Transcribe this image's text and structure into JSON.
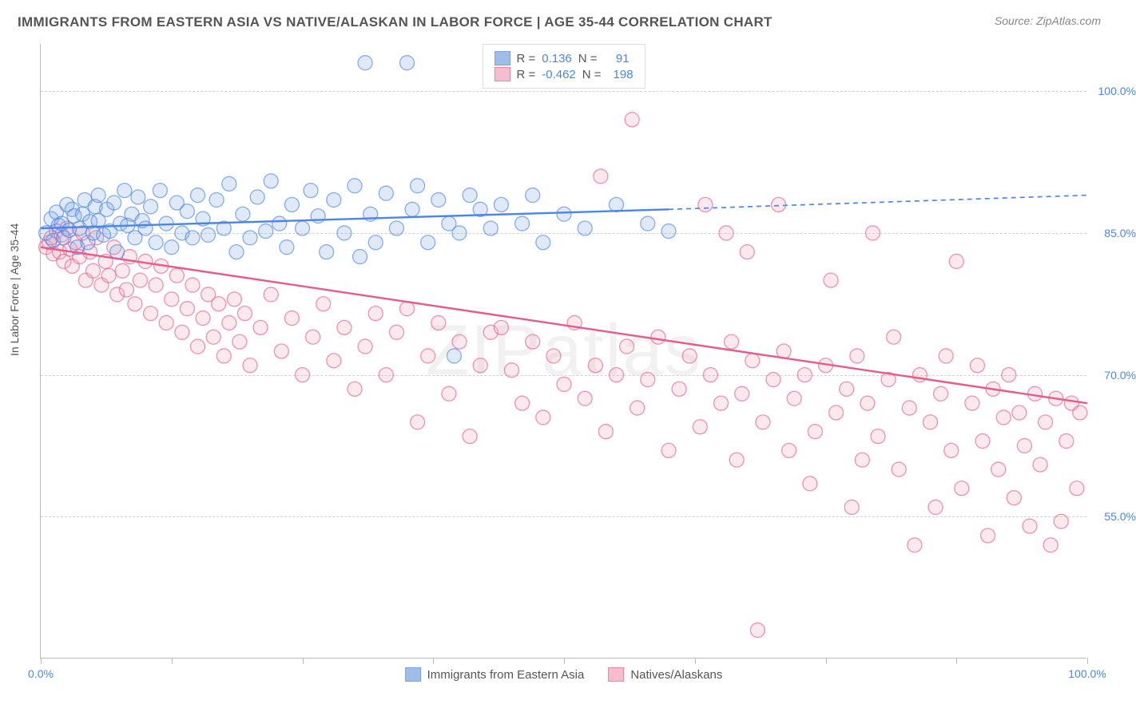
{
  "title": "IMMIGRANTS FROM EASTERN ASIA VS NATIVE/ALASKAN IN LABOR FORCE | AGE 35-44 CORRELATION CHART",
  "source": "Source: ZipAtlas.com",
  "watermark": "ZIPatlas",
  "ylabel": "In Labor Force | Age 35-44",
  "chart": {
    "type": "scatter",
    "xlim": [
      0,
      100
    ],
    "ylim": [
      40,
      105
    ],
    "ytick_labels": [
      "55.0%",
      "70.0%",
      "85.0%",
      "100.0%"
    ],
    "ytick_values": [
      55,
      70,
      85,
      100
    ],
    "xtick_positions": [
      0,
      12.5,
      25,
      37.5,
      50,
      62.5,
      75,
      87.5,
      100
    ],
    "xtick_labels": {
      "0": "0.0%",
      "100": "100.0%"
    },
    "grid_color": "#d0d0d0",
    "marker_radius": 9,
    "marker_stroke_width": 1.3,
    "marker_fill_opacity": 0.25,
    "trend_line_width": 2.4,
    "series": [
      {
        "id": "blue",
        "label": "Immigrants from Eastern Asia",
        "fill": "#7fa8e0",
        "stroke": "#4a86e8",
        "R": "0.136",
        "N": "91",
        "trend": {
          "x1": 0,
          "y1": 85.5,
          "x2": 60,
          "y2": 87.5,
          "extend_x2": 100,
          "extend_y2": 89
        },
        "points": [
          [
            0.5,
            85
          ],
          [
            1,
            86.5
          ],
          [
            1.2,
            84.2
          ],
          [
            1.5,
            87.2
          ],
          [
            1.7,
            85.8
          ],
          [
            2,
            86
          ],
          [
            2.2,
            84.5
          ],
          [
            2.5,
            88
          ],
          [
            2.7,
            85.3
          ],
          [
            3,
            87.5
          ],
          [
            3.2,
            86.8
          ],
          [
            3.5,
            83.5
          ],
          [
            3.7,
            85.5
          ],
          [
            4,
            87
          ],
          [
            4.2,
            88.5
          ],
          [
            4.5,
            84
          ],
          [
            4.7,
            86.2
          ],
          [
            5,
            85
          ],
          [
            5.2,
            87.8
          ],
          [
            5.5,
            89
          ],
          [
            5.5,
            86.3
          ],
          [
            6,
            84.8
          ],
          [
            6.3,
            87.5
          ],
          [
            6.6,
            85.2
          ],
          [
            7,
            88.2
          ],
          [
            7.3,
            83
          ],
          [
            7.6,
            86
          ],
          [
            8,
            89.5
          ],
          [
            8.3,
            85.8
          ],
          [
            8.7,
            87
          ],
          [
            9,
            84.5
          ],
          [
            9.3,
            88.8
          ],
          [
            9.7,
            86.3
          ],
          [
            10,
            85.5
          ],
          [
            10.5,
            87.8
          ],
          [
            11,
            84
          ],
          [
            11.4,
            89.5
          ],
          [
            12,
            86
          ],
          [
            12.5,
            83.5
          ],
          [
            13,
            88.2
          ],
          [
            13.5,
            85
          ],
          [
            14,
            87.3
          ],
          [
            14.5,
            84.5
          ],
          [
            15,
            89
          ],
          [
            15.5,
            86.5
          ],
          [
            16,
            84.8
          ],
          [
            16.8,
            88.5
          ],
          [
            17.5,
            85.5
          ],
          [
            18,
            90.2
          ],
          [
            18.7,
            83
          ],
          [
            19.3,
            87
          ],
          [
            20,
            84.5
          ],
          [
            20.7,
            88.8
          ],
          [
            21.5,
            85.2
          ],
          [
            22,
            90.5
          ],
          [
            22.8,
            86
          ],
          [
            23.5,
            83.5
          ],
          [
            24,
            88
          ],
          [
            25,
            85.5
          ],
          [
            25.8,
            89.5
          ],
          [
            26.5,
            86.8
          ],
          [
            27.3,
            83
          ],
          [
            28,
            88.5
          ],
          [
            29,
            85
          ],
          [
            30,
            90
          ],
          [
            30.5,
            82.5
          ],
          [
            31,
            103
          ],
          [
            31.5,
            87
          ],
          [
            32,
            84
          ],
          [
            33,
            89.2
          ],
          [
            34,
            85.5
          ],
          [
            35,
            103
          ],
          [
            35.5,
            87.5
          ],
          [
            36,
            90
          ],
          [
            37,
            84
          ],
          [
            38,
            88.5
          ],
          [
            39,
            86
          ],
          [
            39.5,
            72
          ],
          [
            40,
            85
          ],
          [
            41,
            89
          ],
          [
            42,
            87.5
          ],
          [
            43,
            85.5
          ],
          [
            44,
            88
          ],
          [
            46,
            86
          ],
          [
            47,
            89
          ],
          [
            48,
            84
          ],
          [
            50,
            87
          ],
          [
            52,
            85.5
          ],
          [
            55,
            88
          ],
          [
            58,
            86
          ],
          [
            60,
            85.2
          ]
        ]
      },
      {
        "id": "pink",
        "label": "Natives/Alaskans",
        "fill": "#f4a7bd",
        "stroke": "#e85a8a",
        "R": "-0.462",
        "N": "198",
        "trend": {
          "x1": 0,
          "y1": 83.5,
          "x2": 100,
          "y2": 67
        },
        "points": [
          [
            0.5,
            83.5
          ],
          [
            0.8,
            84
          ],
          [
            1,
            84.5
          ],
          [
            1.2,
            82.8
          ],
          [
            1.5,
            85.2
          ],
          [
            1.8,
            83
          ],
          [
            2,
            84.8
          ],
          [
            2.2,
            82
          ],
          [
            2.5,
            85.5
          ],
          [
            2.8,
            83.3
          ],
          [
            3,
            81.5
          ],
          [
            3.3,
            84
          ],
          [
            3.7,
            82.5
          ],
          [
            4,
            85
          ],
          [
            4.3,
            80
          ],
          [
            4.7,
            83
          ],
          [
            5,
            81
          ],
          [
            5.3,
            84.5
          ],
          [
            5.8,
            79.5
          ],
          [
            6.2,
            82
          ],
          [
            6.5,
            80.5
          ],
          [
            7,
            83.5
          ],
          [
            7.3,
            78.5
          ],
          [
            7.8,
            81
          ],
          [
            8.2,
            79
          ],
          [
            8.5,
            82.5
          ],
          [
            9,
            77.5
          ],
          [
            9.5,
            80
          ],
          [
            10,
            82
          ],
          [
            10.5,
            76.5
          ],
          [
            11,
            79.5
          ],
          [
            11.5,
            81.5
          ],
          [
            12,
            75.5
          ],
          [
            12.5,
            78
          ],
          [
            13,
            80.5
          ],
          [
            13.5,
            74.5
          ],
          [
            14,
            77
          ],
          [
            14.5,
            79.5
          ],
          [
            15,
            73
          ],
          [
            15.5,
            76
          ],
          [
            16,
            78.5
          ],
          [
            16.5,
            74
          ],
          [
            17,
            77.5
          ],
          [
            17.5,
            72
          ],
          [
            18,
            75.5
          ],
          [
            18.5,
            78
          ],
          [
            19,
            73.5
          ],
          [
            19.5,
            76.5
          ],
          [
            20,
            71
          ],
          [
            21,
            75
          ],
          [
            22,
            78.5
          ],
          [
            23,
            72.5
          ],
          [
            24,
            76
          ],
          [
            25,
            70
          ],
          [
            26,
            74
          ],
          [
            27,
            77.5
          ],
          [
            28,
            71.5
          ],
          [
            29,
            75
          ],
          [
            30,
            68.5
          ],
          [
            31,
            73
          ],
          [
            32,
            76.5
          ],
          [
            33,
            70
          ],
          [
            34,
            74.5
          ],
          [
            35,
            77
          ],
          [
            36,
            65
          ],
          [
            37,
            72
          ],
          [
            38,
            75.5
          ],
          [
            39,
            68
          ],
          [
            40,
            73.5
          ],
          [
            41,
            63.5
          ],
          [
            42,
            71
          ],
          [
            43,
            74.5
          ],
          [
            44,
            75
          ],
          [
            45,
            70.5
          ],
          [
            46,
            67
          ],
          [
            47,
            73.5
          ],
          [
            48,
            65.5
          ],
          [
            49,
            72
          ],
          [
            50,
            69
          ],
          [
            51,
            75.5
          ],
          [
            52,
            67.5
          ],
          [
            53,
            71
          ],
          [
            53.5,
            91
          ],
          [
            54,
            64
          ],
          [
            55,
            70
          ],
          [
            56,
            73
          ],
          [
            56.5,
            97
          ],
          [
            57,
            66.5
          ],
          [
            58,
            69.5
          ],
          [
            59,
            74
          ],
          [
            60,
            62
          ],
          [
            61,
            68.5
          ],
          [
            62,
            72
          ],
          [
            63,
            64.5
          ],
          [
            63.5,
            88
          ],
          [
            64,
            70
          ],
          [
            65,
            67
          ],
          [
            65.5,
            85
          ],
          [
            66,
            73.5
          ],
          [
            66.5,
            61
          ],
          [
            67,
            68
          ],
          [
            67.5,
            83
          ],
          [
            68,
            71.5
          ],
          [
            68.5,
            43
          ],
          [
            69,
            65
          ],
          [
            70,
            69.5
          ],
          [
            70.5,
            88
          ],
          [
            71,
            72.5
          ],
          [
            71.5,
            62
          ],
          [
            72,
            67.5
          ],
          [
            73,
            70
          ],
          [
            73.5,
            58.5
          ],
          [
            74,
            64
          ],
          [
            75,
            71
          ],
          [
            75.5,
            80
          ],
          [
            76,
            66
          ],
          [
            77,
            68.5
          ],
          [
            77.5,
            56
          ],
          [
            78,
            72
          ],
          [
            78.5,
            61
          ],
          [
            79,
            67
          ],
          [
            79.5,
            85
          ],
          [
            80,
            63.5
          ],
          [
            81,
            69.5
          ],
          [
            81.5,
            74
          ],
          [
            82,
            60
          ],
          [
            83,
            66.5
          ],
          [
            83.5,
            52
          ],
          [
            84,
            70
          ],
          [
            85,
            65
          ],
          [
            85.5,
            56
          ],
          [
            86,
            68
          ],
          [
            86.5,
            72
          ],
          [
            87,
            62
          ],
          [
            87.5,
            82
          ],
          [
            88,
            58
          ],
          [
            89,
            67
          ],
          [
            89.5,
            71
          ],
          [
            90,
            63
          ],
          [
            90.5,
            53
          ],
          [
            91,
            68.5
          ],
          [
            91.5,
            60
          ],
          [
            92,
            65.5
          ],
          [
            92.5,
            70
          ],
          [
            93,
            57
          ],
          [
            93.5,
            66
          ],
          [
            94,
            62.5
          ],
          [
            94.5,
            54
          ],
          [
            95,
            68
          ],
          [
            95.5,
            60.5
          ],
          [
            96,
            65
          ],
          [
            96.5,
            52
          ],
          [
            97,
            67.5
          ],
          [
            97.5,
            54.5
          ],
          [
            98,
            63
          ],
          [
            98.5,
            67
          ],
          [
            99,
            58
          ],
          [
            99.3,
            66
          ]
        ]
      }
    ]
  },
  "legend_top": {
    "r_label": "R =",
    "n_label": "N ="
  }
}
